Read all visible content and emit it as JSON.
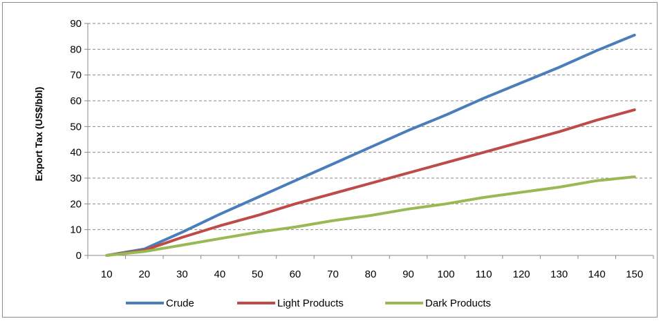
{
  "chart_data": {
    "type": "line",
    "title": "",
    "xlabel": "",
    "ylabel": "Export Tax  (US$/bbl)",
    "x": [
      10,
      20,
      30,
      40,
      50,
      60,
      70,
      80,
      90,
      100,
      110,
      120,
      130,
      140,
      150
    ],
    "xticks": [
      "10",
      "20",
      "30",
      "40",
      "50",
      "60",
      "70",
      "80",
      "90",
      "100",
      "110",
      "120",
      "130",
      "140",
      "150"
    ],
    "ylim": [
      0,
      90
    ],
    "yticks": [
      "0",
      "10",
      "20",
      "30",
      "40",
      "50",
      "60",
      "70",
      "80",
      "90"
    ],
    "grid": "horizontal-dashed",
    "legend_position": "bottom",
    "series": [
      {
        "name": "Crude",
        "color": "#4a7ebb",
        "values": [
          0,
          2.5,
          9,
          16,
          22.5,
          29,
          35.5,
          42,
          48.5,
          54.5,
          61,
          67,
          73,
          79.5,
          85.5
        ]
      },
      {
        "name": "Light Products",
        "color": "#be4b48",
        "values": [
          0,
          2,
          7,
          11.5,
          15.5,
          20,
          24,
          28,
          32,
          36,
          40,
          44,
          48,
          52.5,
          56.5
        ]
      },
      {
        "name": "Dark Products",
        "color": "#98b954",
        "values": [
          0,
          1.5,
          4,
          6.5,
          9,
          11,
          13.5,
          15.5,
          18,
          20,
          22.5,
          24.5,
          26.5,
          29,
          30.5
        ]
      }
    ]
  }
}
